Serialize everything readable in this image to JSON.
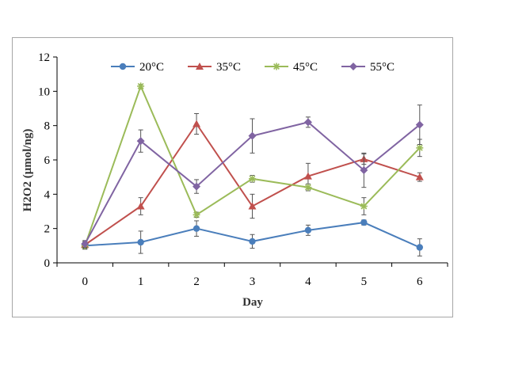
{
  "chart_data": {
    "type": "line",
    "x": [
      0,
      1,
      2,
      3,
      4,
      5,
      6
    ],
    "xlabel": "Day",
    "ylabel": "H2O2 (μmol/ng)",
    "ylim": [
      0,
      12
    ],
    "yticks": [
      0,
      2,
      4,
      6,
      8,
      10,
      12
    ],
    "xticks": [
      0,
      1,
      2,
      3,
      4,
      5,
      6
    ],
    "grid": false,
    "legend_position": "top",
    "series": [
      {
        "name": "20°C",
        "color": "#4a7ebb",
        "marker": "circle",
        "values": [
          1.0,
          1.2,
          2.0,
          1.25,
          1.9,
          2.35,
          0.9
        ],
        "errors": [
          0.2,
          0.65,
          0.45,
          0.4,
          0.3,
          0.15,
          0.5
        ]
      },
      {
        "name": "35°C",
        "color": "#c0504d",
        "marker": "triangle",
        "values": [
          1.05,
          3.3,
          8.1,
          3.3,
          5.05,
          6.05,
          5.0
        ],
        "errors": [
          0.2,
          0.5,
          0.6,
          0.7,
          0.75,
          0.3,
          0.25
        ]
      },
      {
        "name": "45°C",
        "color": "#9bbb59",
        "marker": "star",
        "values": [
          1.0,
          10.3,
          2.8,
          4.9,
          4.4,
          3.3,
          6.7
        ],
        "errors": [
          0.2,
          0.1,
          0.15,
          0.2,
          0.2,
          0.5,
          0.5
        ]
      },
      {
        "name": "55°C",
        "color": "#8064a2",
        "marker": "diamond",
        "values": [
          1.1,
          7.1,
          4.45,
          7.4,
          8.2,
          5.4,
          8.05
        ],
        "errors": [
          0.2,
          0.65,
          0.4,
          1.0,
          0.3,
          1.0,
          1.15
        ]
      }
    ]
  }
}
